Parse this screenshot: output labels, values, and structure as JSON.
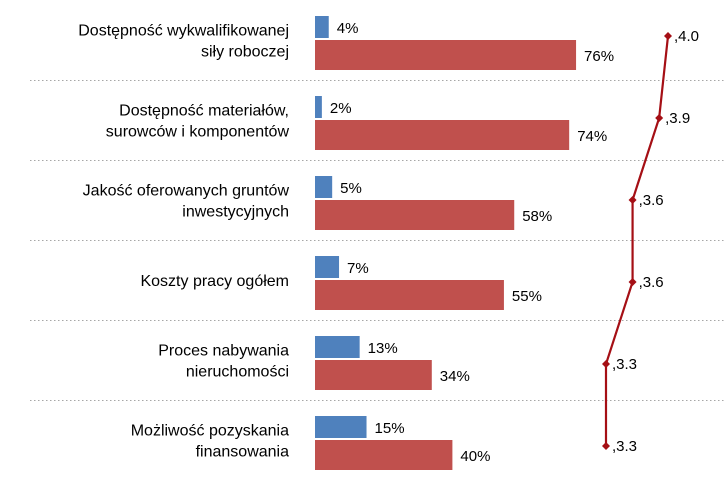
{
  "chart_data": {
    "type": "bar",
    "orientation": "horizontal",
    "categories": [
      [
        "Dostępność wykwalifikowanej",
        "siły roboczej"
      ],
      [
        "Dostępność materiałów,",
        "surowców i komponentów"
      ],
      [
        "Jakość oferowanych gruntów",
        "inwestycyjnych"
      ],
      [
        "Koszty pracy ogółem"
      ],
      [
        "Proces nabywania",
        "nieruchomości"
      ],
      [
        "Możliwość pozyskania",
        "finansowania"
      ]
    ],
    "series": [
      {
        "values": [
          4,
          2,
          5,
          7,
          13,
          15
        ],
        "labels": [
          "4%",
          "2%",
          "5%",
          "7%",
          "13%",
          "15%"
        ],
        "color": "#4f81bd"
      },
      {
        "values": [
          76,
          74,
          58,
          55,
          34,
          40
        ],
        "labels": [
          "76%",
          "74%",
          "58%",
          "55%",
          "34%",
          "40%"
        ],
        "color": "#c0504d"
      }
    ],
    "line": {
      "values": [
        4.0,
        3.9,
        3.6,
        3.6,
        3.3,
        3.3
      ],
      "labels": [
        ",4.0",
        ",3.9",
        ",3.6",
        ",3.6",
        ",3.3",
        ",3.3"
      ],
      "color": "#a50f15"
    },
    "xlim": [
      0,
      100
    ],
    "line_xlim": [
      3.3,
      4.0
    ],
    "grid": false,
    "separators": "dotted"
  }
}
